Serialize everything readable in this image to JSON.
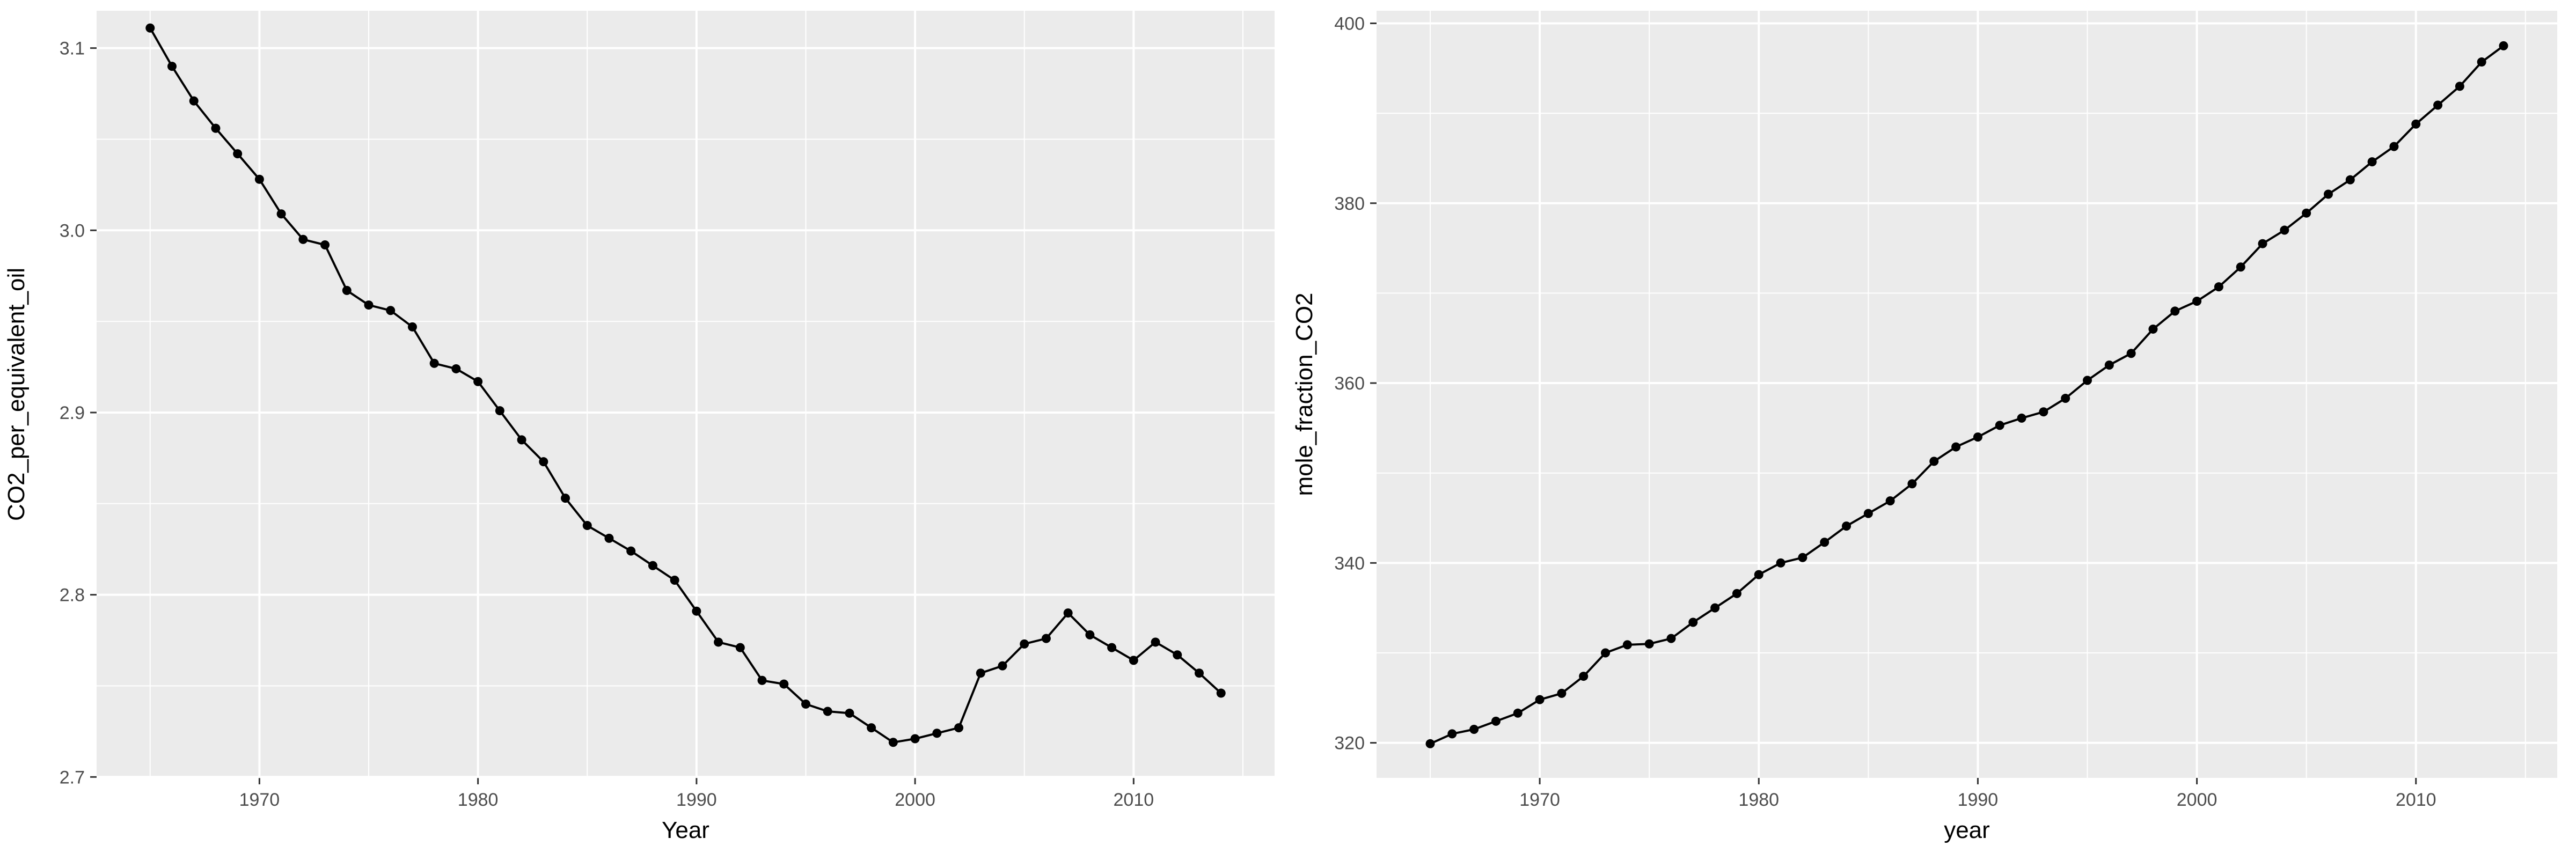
{
  "chart_data": [
    {
      "type": "line",
      "title": "",
      "xlabel": "Year",
      "ylabel": "CO2_per_equivalent_oil",
      "xlim": [
        1962.55,
        2016.45
      ],
      "ylim": [
        2.6995,
        3.1205
      ],
      "xticks": [
        1970,
        1980,
        1990,
        2000,
        2010
      ],
      "yticks": [
        2.7,
        2.8,
        2.9,
        3.0,
        3.1
      ],
      "ytick_labels": [
        "2.7",
        "2.8",
        "2.9",
        "3.0",
        "3.1"
      ],
      "grid": true,
      "markers": true,
      "colors": {
        "panel": "#ebebeb",
        "grid": "#ffffff",
        "line": "#000000"
      },
      "x": [
        1965,
        1966,
        1967,
        1968,
        1969,
        1970,
        1971,
        1972,
        1973,
        1974,
        1975,
        1976,
        1977,
        1978,
        1979,
        1980,
        1981,
        1982,
        1983,
        1984,
        1985,
        1986,
        1987,
        1988,
        1989,
        1990,
        1991,
        1992,
        1993,
        1994,
        1995,
        1996,
        1997,
        1998,
        1999,
        2000,
        2001,
        2002,
        2003,
        2004,
        2005,
        2006,
        2007,
        2008,
        2009,
        2010,
        2011,
        2012,
        2013,
        2014
      ],
      "y": [
        3.111,
        3.09,
        3.071,
        3.056,
        3.042,
        3.028,
        3.009,
        2.995,
        2.992,
        2.967,
        2.959,
        2.956,
        2.947,
        2.927,
        2.924,
        2.917,
        2.901,
        2.885,
        2.873,
        2.853,
        2.838,
        2.831,
        2.824,
        2.816,
        2.808,
        2.791,
        2.774,
        2.771,
        2.753,
        2.751,
        2.74,
        2.736,
        2.735,
        2.727,
        2.719,
        2.721,
        2.724,
        2.727,
        2.757,
        2.761,
        2.773,
        2.776,
        2.79,
        2.778,
        2.771,
        2.764,
        2.774,
        2.767,
        2.757,
        2.746
      ]
    },
    {
      "type": "line",
      "title": "",
      "xlabel": "year",
      "ylabel": "mole_fraction_CO2",
      "xlim": [
        1962.55,
        2016.45
      ],
      "ylim": [
        316.1,
        401.4
      ],
      "xticks": [
        1970,
        1980,
        1990,
        2000,
        2010
      ],
      "yticks": [
        320,
        340,
        360,
        380,
        400
      ],
      "ytick_labels": [
        "320",
        "340",
        "360",
        "380",
        "400"
      ],
      "grid": true,
      "markers": true,
      "colors": {
        "panel": "#ebebeb",
        "grid": "#ffffff",
        "line": "#000000"
      },
      "x": [
        1965,
        1966,
        1967,
        1968,
        1969,
        1970,
        1971,
        1972,
        1973,
        1974,
        1975,
        1976,
        1977,
        1978,
        1979,
        1980,
        1981,
        1982,
        1983,
        1984,
        1985,
        1986,
        1987,
        1988,
        1989,
        1990,
        1991,
        1992,
        1993,
        1994,
        1995,
        1996,
        1997,
        1998,
        1999,
        2000,
        2001,
        2002,
        2003,
        2004,
        2005,
        2006,
        2007,
        2008,
        2009,
        2010,
        2011,
        2012,
        2013,
        2014
      ],
      "y": [
        319.9,
        321.0,
        321.5,
        322.4,
        323.3,
        324.8,
        325.5,
        327.4,
        330.0,
        330.9,
        331.0,
        331.6,
        333.4,
        335.0,
        336.6,
        338.7,
        340.0,
        340.6,
        342.3,
        344.1,
        345.5,
        346.9,
        348.8,
        351.3,
        352.9,
        354.0,
        355.3,
        356.1,
        356.8,
        358.3,
        360.3,
        362.0,
        363.3,
        366.0,
        368.0,
        369.1,
        370.7,
        372.9,
        375.5,
        377.0,
        378.9,
        381.0,
        382.6,
        384.6,
        386.3,
        388.8,
        390.9,
        393.0,
        395.7,
        397.5
      ]
    }
  ]
}
